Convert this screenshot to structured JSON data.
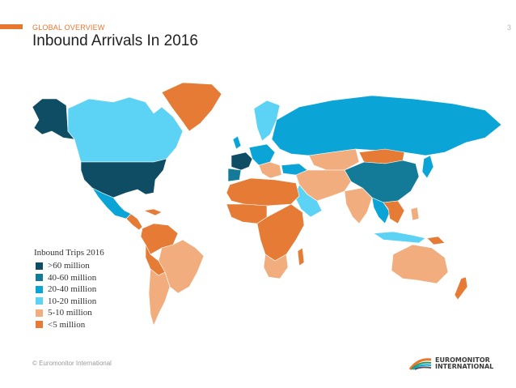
{
  "header": {
    "section_label": "GLOBAL OVERVIEW",
    "page_number": "3",
    "title": "Inbound Arrivals In 2016"
  },
  "colors": {
    "accent": "#e8772e",
    "gt60": "#0e4d63",
    "m40_60": "#137b97",
    "m20_40": "#0aa5d6",
    "m10_20": "#5cd2f4",
    "m5_10": "#f2ad7e",
    "lt5": "#e57b34",
    "no_data": "#d9d9d9"
  },
  "legend": {
    "title": "Inbound Trips 2016",
    "items": [
      {
        "label": ">60 million",
        "color": "#0e4d63"
      },
      {
        "label": "40-60 million",
        "color": "#137b97"
      },
      {
        "label": "20-40 million",
        "color": "#0aa5d6"
      },
      {
        "label": "10-20 million",
        "color": "#5cd2f4"
      },
      {
        "label": "5-10 million",
        "color": "#f2ad7e"
      },
      {
        "label": "<5 million",
        "color": "#e57b34"
      }
    ]
  },
  "footer": {
    "copyright": "© Euromonitor International",
    "logo_line1": "EUROMONITOR",
    "logo_line2": "INTERNATIONAL"
  }
}
